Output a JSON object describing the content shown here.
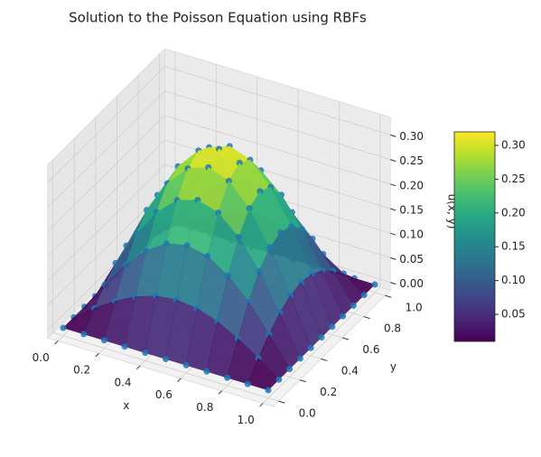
{
  "chart_data": {
    "type": "surface3d",
    "title": "Solution to the Poisson Equation using RBFs",
    "xlabel": "x",
    "ylabel": "y",
    "zlabel": "u(x, y)",
    "x": [
      0,
      0.1,
      0.2,
      0.3,
      0.4,
      0.5,
      0.6,
      0.7,
      0.8,
      0.9,
      1
    ],
    "y": [
      0,
      0.1,
      0.2,
      0.3,
      0.4,
      0.5,
      0.6,
      0.7,
      0.8,
      0.9,
      1
    ],
    "z": [
      [
        0,
        0,
        0,
        0,
        0,
        0,
        0,
        0,
        0,
        0,
        0
      ],
      [
        0,
        0.031,
        0.058,
        0.08,
        0.094,
        0.099,
        0.094,
        0.08,
        0.058,
        0.031,
        0
      ],
      [
        0,
        0.058,
        0.111,
        0.152,
        0.179,
        0.188,
        0.179,
        0.152,
        0.111,
        0.058,
        0
      ],
      [
        0,
        0.08,
        0.152,
        0.209,
        0.246,
        0.259,
        0.246,
        0.209,
        0.152,
        0.08,
        0
      ],
      [
        0,
        0.094,
        0.179,
        0.246,
        0.289,
        0.304,
        0.289,
        0.246,
        0.179,
        0.094,
        0
      ],
      [
        0,
        0.099,
        0.188,
        0.259,
        0.304,
        0.32,
        0.304,
        0.259,
        0.188,
        0.099,
        0
      ],
      [
        0,
        0.094,
        0.179,
        0.246,
        0.289,
        0.304,
        0.289,
        0.246,
        0.179,
        0.094,
        0
      ],
      [
        0,
        0.08,
        0.152,
        0.209,
        0.246,
        0.259,
        0.246,
        0.209,
        0.152,
        0.08,
        0
      ],
      [
        0,
        0.058,
        0.111,
        0.152,
        0.179,
        0.188,
        0.179,
        0.152,
        0.111,
        0.058,
        0
      ],
      [
        0,
        0.031,
        0.058,
        0.08,
        0.094,
        0.099,
        0.094,
        0.08,
        0.058,
        0.031,
        0
      ],
      [
        0,
        0,
        0,
        0,
        0,
        0,
        0,
        0,
        0,
        0,
        0
      ]
    ],
    "point_color": "#1f77b4",
    "colormap": "viridis",
    "xlim": [
      -0.05,
      1.05
    ],
    "ylim": [
      -0.05,
      1.05
    ],
    "zlim": [
      -0.016,
      0.336
    ],
    "xticks": [
      {
        "value": 0,
        "label": "0.0"
      },
      0.2,
      0.4,
      0.6,
      0.8,
      {
        "value": 1,
        "label": "1.0"
      }
    ],
    "yticks": [
      {
        "value": 0,
        "label": "0.0"
      },
      0.2,
      0.4,
      0.6,
      0.8,
      {
        "value": 1,
        "label": "1.0"
      }
    ],
    "zticks": [
      {
        "value": 0,
        "label": "0.00"
      },
      0.05,
      {
        "value": 0.1,
        "label": "0.10"
      },
      0.15,
      {
        "value": 0.2,
        "label": "0.20"
      },
      0.25,
      {
        "value": 0.3,
        "label": "0.30"
      }
    ],
    "clim": [
      0.01,
      0.32
    ],
    "cticks": [
      0.05,
      {
        "value": 0.1,
        "label": "0.10"
      },
      0.15,
      {
        "value": 0.2,
        "label": "0.20"
      },
      0.25,
      {
        "value": 0.3,
        "label": "0.30"
      }
    ],
    "grid": true
  }
}
